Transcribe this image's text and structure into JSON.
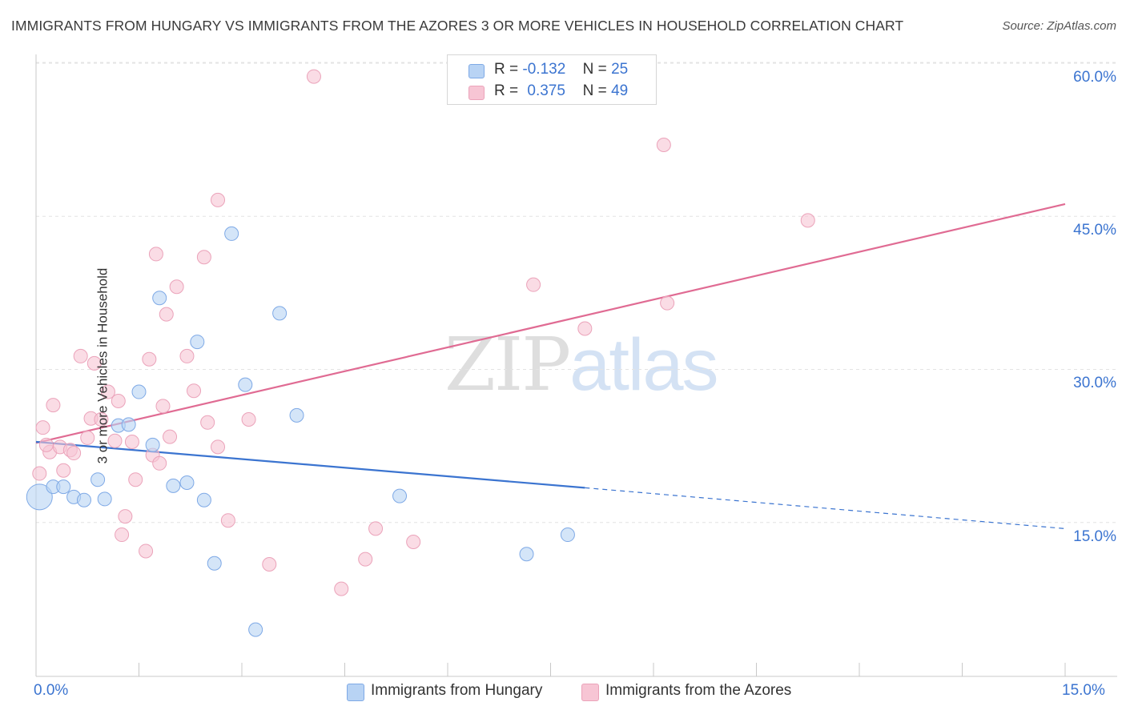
{
  "title": "IMMIGRANTS FROM HUNGARY VS IMMIGRANTS FROM THE AZORES 3 OR MORE VEHICLES IN HOUSEHOLD CORRELATION CHART",
  "source": "Source: ZipAtlas.com",
  "watermark": {
    "zip": "ZIP",
    "atlas": "atlas"
  },
  "legend": {
    "r_label": "R =",
    "n_label": "N =",
    "series": [
      {
        "name": "Immigrants from Hungary",
        "r": "-0.132",
        "n": "25"
      },
      {
        "name": "Immigrants from the Azores",
        "r": "0.375",
        "n": "49"
      }
    ]
  },
  "chart_data": {
    "type": "scatter",
    "title": "IMMIGRANTS FROM HUNGARY VS IMMIGRANTS FROM THE AZORES 3 OR MORE VEHICLES IN HOUSEHOLD CORRELATION CHART",
    "xlabel": "",
    "ylabel": "3 or more Vehicles in Household",
    "xlim": [
      0,
      15
    ],
    "ylim": [
      0,
      60
    ],
    "x_tick_labels": [
      "0.0%",
      "15.0%"
    ],
    "y_ticks": [
      15,
      30,
      45,
      60
    ],
    "y_tick_labels": [
      "15.0%",
      "30.0%",
      "45.0%",
      "60.0%"
    ],
    "grid": true,
    "colors": {
      "hungary": "#3b74d0",
      "azores": "#e06b93",
      "hungary_fill": "#b8d3f4",
      "azores_fill": "#f7c5d4"
    },
    "series": [
      {
        "name": "Immigrants from Hungary",
        "points": [
          [
            0.05,
            17.5
          ],
          [
            0.25,
            18.5
          ],
          [
            0.4,
            18.5
          ],
          [
            0.55,
            17.5
          ],
          [
            0.7,
            17.2
          ],
          [
            0.9,
            19.2
          ],
          [
            1.0,
            17.3
          ],
          [
            1.2,
            24.5
          ],
          [
            1.35,
            24.6
          ],
          [
            1.5,
            27.8
          ],
          [
            1.7,
            22.6
          ],
          [
            1.8,
            37.0
          ],
          [
            2.0,
            18.6
          ],
          [
            2.2,
            18.9
          ],
          [
            2.35,
            32.7
          ],
          [
            2.45,
            17.2
          ],
          [
            2.6,
            11.0
          ],
          [
            2.85,
            43.3
          ],
          [
            3.05,
            28.5
          ],
          [
            3.55,
            35.5
          ],
          [
            3.8,
            25.5
          ],
          [
            5.3,
            17.6
          ],
          [
            7.15,
            11.9
          ],
          [
            7.75,
            13.8
          ],
          [
            3.2,
            4.5
          ]
        ],
        "trend": {
          "x": [
            0,
            8.0
          ],
          "y": [
            22.9,
            18.4
          ],
          "dashed_to": [
            15,
            14.4
          ]
        }
      },
      {
        "name": "Immigrants from the Azores",
        "points": [
          [
            0.05,
            19.8
          ],
          [
            0.1,
            24.3
          ],
          [
            0.2,
            21.9
          ],
          [
            0.25,
            26.5
          ],
          [
            0.35,
            22.4
          ],
          [
            0.4,
            20.1
          ],
          [
            0.5,
            22.1
          ],
          [
            0.55,
            21.8
          ],
          [
            0.65,
            31.3
          ],
          [
            0.75,
            23.3
          ],
          [
            0.8,
            25.2
          ],
          [
            0.85,
            30.6
          ],
          [
            0.95,
            25.1
          ],
          [
            1.05,
            27.8
          ],
          [
            1.15,
            23.0
          ],
          [
            1.2,
            26.9
          ],
          [
            1.25,
            13.8
          ],
          [
            1.3,
            15.6
          ],
          [
            1.4,
            22.9
          ],
          [
            1.45,
            19.2
          ],
          [
            1.6,
            12.2
          ],
          [
            1.65,
            31.0
          ],
          [
            1.7,
            21.6
          ],
          [
            1.75,
            41.3
          ],
          [
            1.8,
            20.8
          ],
          [
            1.85,
            26.4
          ],
          [
            1.9,
            35.4
          ],
          [
            1.95,
            23.4
          ],
          [
            2.05,
            38.1
          ],
          [
            2.2,
            31.3
          ],
          [
            2.3,
            27.9
          ],
          [
            2.45,
            41.0
          ],
          [
            2.5,
            24.8
          ],
          [
            2.65,
            46.6
          ],
          [
            2.65,
            22.4
          ],
          [
            2.8,
            15.2
          ],
          [
            3.1,
            25.1
          ],
          [
            3.4,
            10.9
          ],
          [
            4.05,
            58.7
          ],
          [
            4.45,
            8.5
          ],
          [
            4.8,
            11.4
          ],
          [
            4.95,
            14.4
          ],
          [
            5.5,
            13.1
          ],
          [
            7.25,
            38.3
          ],
          [
            8.0,
            34.0
          ],
          [
            9.15,
            52.0
          ],
          [
            9.2,
            36.5
          ],
          [
            11.25,
            44.6
          ],
          [
            0.15,
            22.6
          ]
        ],
        "trend": {
          "x": [
            0,
            15
          ],
          "y": [
            22.8,
            46.2
          ]
        }
      }
    ]
  }
}
